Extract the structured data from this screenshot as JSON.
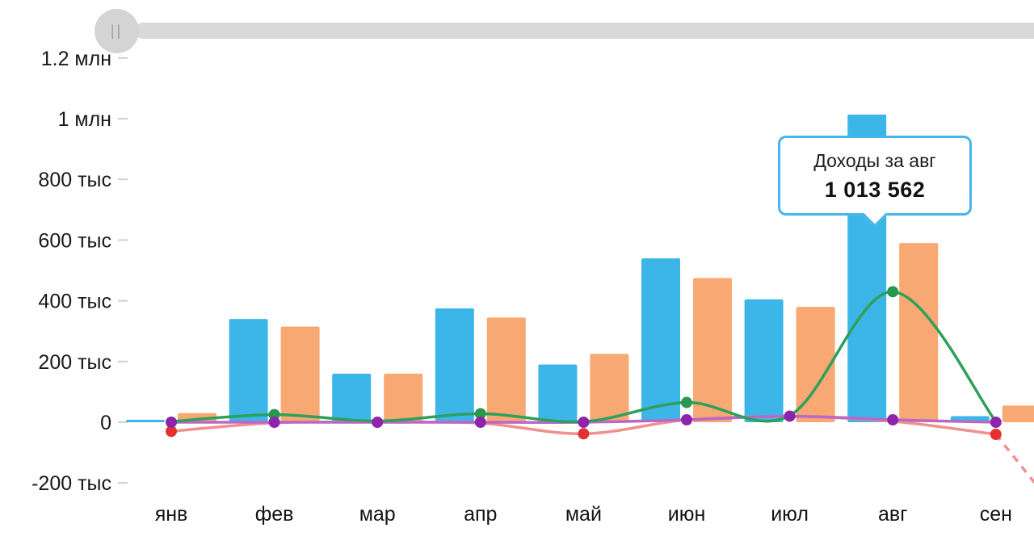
{
  "scrollbar": {
    "handle_glyph": "||"
  },
  "tooltip": {
    "title": "Доходы за авг",
    "value": "1 013 562",
    "accent_color": "#45B6E8"
  },
  "chart_data": {
    "type": "combo",
    "title": "",
    "xlabel": "",
    "ylabel": "",
    "grid": false,
    "legend": "none",
    "ylim": [
      -280000,
      1300000
    ],
    "categories": [
      "янв",
      "фев",
      "мар",
      "апр",
      "май",
      "июн",
      "июл",
      "авг",
      "сен"
    ],
    "y_ticks": [
      {
        "label": "1.2 млн",
        "value": 1200000
      },
      {
        "label": "1 млн",
        "value": 1000000
      },
      {
        "label": "800 тыс",
        "value": 800000
      },
      {
        "label": "600 тыс",
        "value": 600000
      },
      {
        "label": "400 тыс",
        "value": 400000
      },
      {
        "label": "200 тыс",
        "value": 200000
      },
      {
        "label": "0",
        "value": 0
      },
      {
        "label": "-200 тыс",
        "value": -200000
      }
    ],
    "series": [
      {
        "id": "income",
        "type": "bar",
        "color": "#3CB6E8",
        "values": [
          8000,
          340000,
          160000,
          375000,
          190000,
          540000,
          405000,
          1013562,
          20000
        ]
      },
      {
        "id": "bar-orange",
        "type": "bar",
        "color": "#F8A872",
        "values": [
          30000,
          315000,
          160000,
          345000,
          225000,
          475000,
          380000,
          590000,
          55000
        ]
      },
      {
        "id": "line-red",
        "type": "line",
        "color": "#F28F8F",
        "dot_color": "#E53030",
        "dot_indices": [
          0,
          4,
          8
        ],
        "values": [
          -30000,
          -2000,
          0,
          -3000,
          -38000,
          8000,
          18000,
          3000,
          -40000
        ],
        "dashed_extension_value": -230000
      },
      {
        "id": "line-purple",
        "type": "line",
        "color": "#BA68C8",
        "dot_color": "#8E24AA",
        "dot_indices": [
          0,
          1,
          2,
          3,
          4,
          5,
          6,
          7,
          8
        ],
        "values": [
          0,
          0,
          0,
          0,
          0,
          8000,
          20000,
          8000,
          0
        ]
      },
      {
        "id": "line-green",
        "type": "line",
        "color": "#2DA05A",
        "dot_color": "#27994F",
        "dot_indices": [
          1,
          3,
          5,
          7
        ],
        "values": [
          2000,
          25000,
          4000,
          28000,
          2000,
          65000,
          22000,
          430000,
          2000
        ]
      }
    ]
  }
}
